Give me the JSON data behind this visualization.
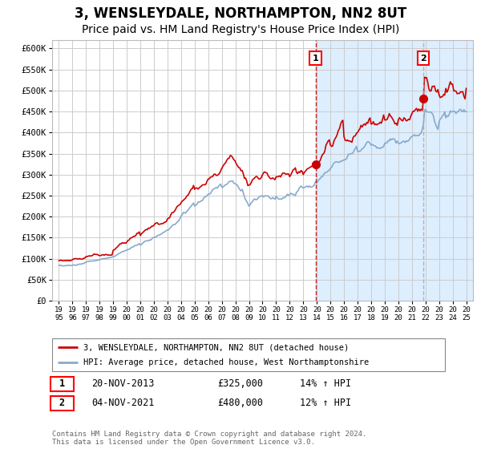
{
  "title": "3, WENSLEYDALE, NORTHAMPTON, NN2 8UT",
  "subtitle": "Price paid vs. HM Land Registry's House Price Index (HPI)",
  "title_fontsize": 12,
  "subtitle_fontsize": 10,
  "red_label": "3, WENSLEYDALE, NORTHAMPTON, NN2 8UT (detached house)",
  "blue_label": "HPI: Average price, detached house, West Northamptonshire",
  "annotation1_label": "1",
  "annotation1_date": "20-NOV-2013",
  "annotation1_price": "£325,000",
  "annotation1_hpi": "14% ↑ HPI",
  "annotation2_label": "2",
  "annotation2_date": "04-NOV-2021",
  "annotation2_price": "£480,000",
  "annotation2_hpi": "12% ↑ HPI",
  "vline1_x": 2013.9,
  "vline2_x": 2021.85,
  "marker1_x": 2013.9,
  "marker1_y": 325000,
  "marker2_x": 2021.85,
  "marker2_y": 480000,
  "ylim": [
    0,
    620000
  ],
  "xlim": [
    1994.5,
    2025.5
  ],
  "background_color": "#ffffff",
  "plot_bg_color": "#ffffff",
  "shade_color": "#ddeeff",
  "grid_color": "#cccccc",
  "red_color": "#cc0000",
  "blue_color": "#88aacc",
  "footnote": "Contains HM Land Registry data © Crown copyright and database right 2024.\nThis data is licensed under the Open Government Licence v3.0.",
  "yticks": [
    0,
    50000,
    100000,
    150000,
    200000,
    250000,
    300000,
    350000,
    400000,
    450000,
    500000,
    550000,
    600000
  ],
  "ytick_labels": [
    "£0",
    "£50K",
    "£100K",
    "£150K",
    "£200K",
    "£250K",
    "£300K",
    "£350K",
    "£400K",
    "£450K",
    "£500K",
    "£550K",
    "£600K"
  ]
}
